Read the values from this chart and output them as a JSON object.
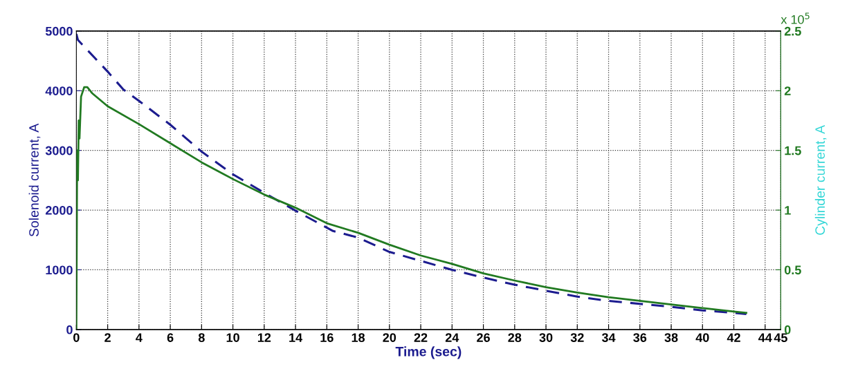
{
  "chart_data": {
    "type": "line",
    "xlabel": "Time (sec)",
    "ylabel": "Solenoid current, A",
    "y2label": "Cylinder current, A",
    "xlim": [
      0,
      45
    ],
    "xticks": [
      0,
      2,
      4,
      6,
      8,
      10,
      12,
      14,
      16,
      18,
      20,
      22,
      24,
      26,
      28,
      30,
      32,
      34,
      36,
      38,
      40,
      42,
      44,
      45
    ],
    "ylim": [
      0,
      5000
    ],
    "yticks": [
      0,
      1000,
      2000,
      3000,
      4000,
      5000
    ],
    "y2lim": [
      0,
      2.5
    ],
    "y2ticks": [
      0,
      0.5,
      1,
      1.5,
      2,
      2.5
    ],
    "grid": true,
    "marker": "none",
    "annotations": [
      "x 10$^{5}$"
    ],
    "series": [
      {
        "color": "#1c1c8f",
        "line_style": "dashed",
        "x": [
          0,
          0.1,
          2,
          3,
          4,
          6,
          8,
          10,
          12,
          14,
          16.4,
          18,
          20,
          22,
          24,
          26,
          28,
          30,
          32,
          34,
          36,
          38,
          40,
          42,
          42.8
        ],
        "values": [
          4950,
          4850,
          4320,
          4020,
          3830,
          3430,
          2980,
          2600,
          2290,
          1990,
          1650,
          1540,
          1300,
          1150,
          1000,
          870,
          750,
          650,
          550,
          480,
          430,
          380,
          320,
          280,
          260
        ]
      },
      {
        "color": "#217a21",
        "line_style": "solid",
        "axis": "y2",
        "x": [
          0,
          0.05,
          0.1,
          0.15,
          0.2,
          0.3,
          0.5,
          0.7,
          1,
          2,
          4,
          6,
          8,
          10,
          12,
          14,
          16,
          18,
          20,
          22,
          24,
          26,
          28,
          30,
          32,
          34,
          36,
          38,
          40,
          42,
          42.8
        ],
        "values": [
          0,
          1.5,
          1.25,
          1.75,
          1.6,
          1.95,
          2.03,
          2.03,
          1.98,
          1.87,
          1.72,
          1.56,
          1.4,
          1.26,
          1.13,
          1.02,
          0.89,
          0.81,
          0.71,
          0.62,
          0.55,
          0.47,
          0.41,
          0.355,
          0.31,
          0.27,
          0.24,
          0.21,
          0.18,
          0.15,
          0.14
        ]
      }
    ]
  }
}
